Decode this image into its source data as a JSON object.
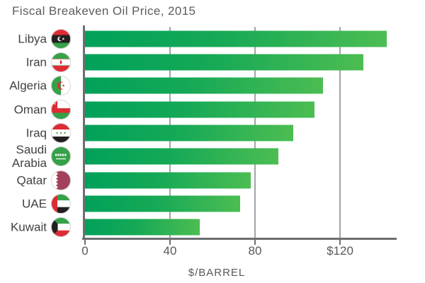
{
  "title": "Fiscal Breakeven Oil Price, 2015",
  "chart_data": {
    "type": "bar",
    "orientation": "horizontal",
    "title": "Fiscal Breakeven Oil Price, 2015",
    "categories": [
      "Libya",
      "Iran",
      "Algeria",
      "Oman",
      "Iraq",
      "Saudi Arabia",
      "Qatar",
      "UAE",
      "Kuwait"
    ],
    "values": [
      142,
      131,
      112,
      108,
      98,
      91,
      78,
      73,
      54
    ],
    "flags": [
      "libya",
      "iran",
      "algeria",
      "oman",
      "iraq",
      "saudi-arabia",
      "qatar",
      "uae",
      "kuwait"
    ],
    "xlabel": "$/BARREL",
    "ylabel": "",
    "xticks": [
      0,
      40,
      80,
      120
    ],
    "xtick_labels": [
      "0",
      "40",
      "80",
      "$120"
    ],
    "xlim": [
      0,
      146.7
    ],
    "grid": "vertical-behind-bars",
    "legend": "none",
    "bar_gradient": [
      "#00a15a",
      "#4cbd52"
    ]
  },
  "colors": {
    "background": "#ffffff",
    "title_text": "#5b5c5e",
    "label_text": "#3f4144",
    "tick_text": "#57585b",
    "axis": "#6d6e71",
    "gridline": "#a3a5a8",
    "bar_start": "#00a15a",
    "bar_end": "#4cbd52",
    "flag_red": "#dd2c33",
    "flag_green": "#35a148",
    "flag_black": "#231f20",
    "qatar_maroon": "#a3415a"
  }
}
